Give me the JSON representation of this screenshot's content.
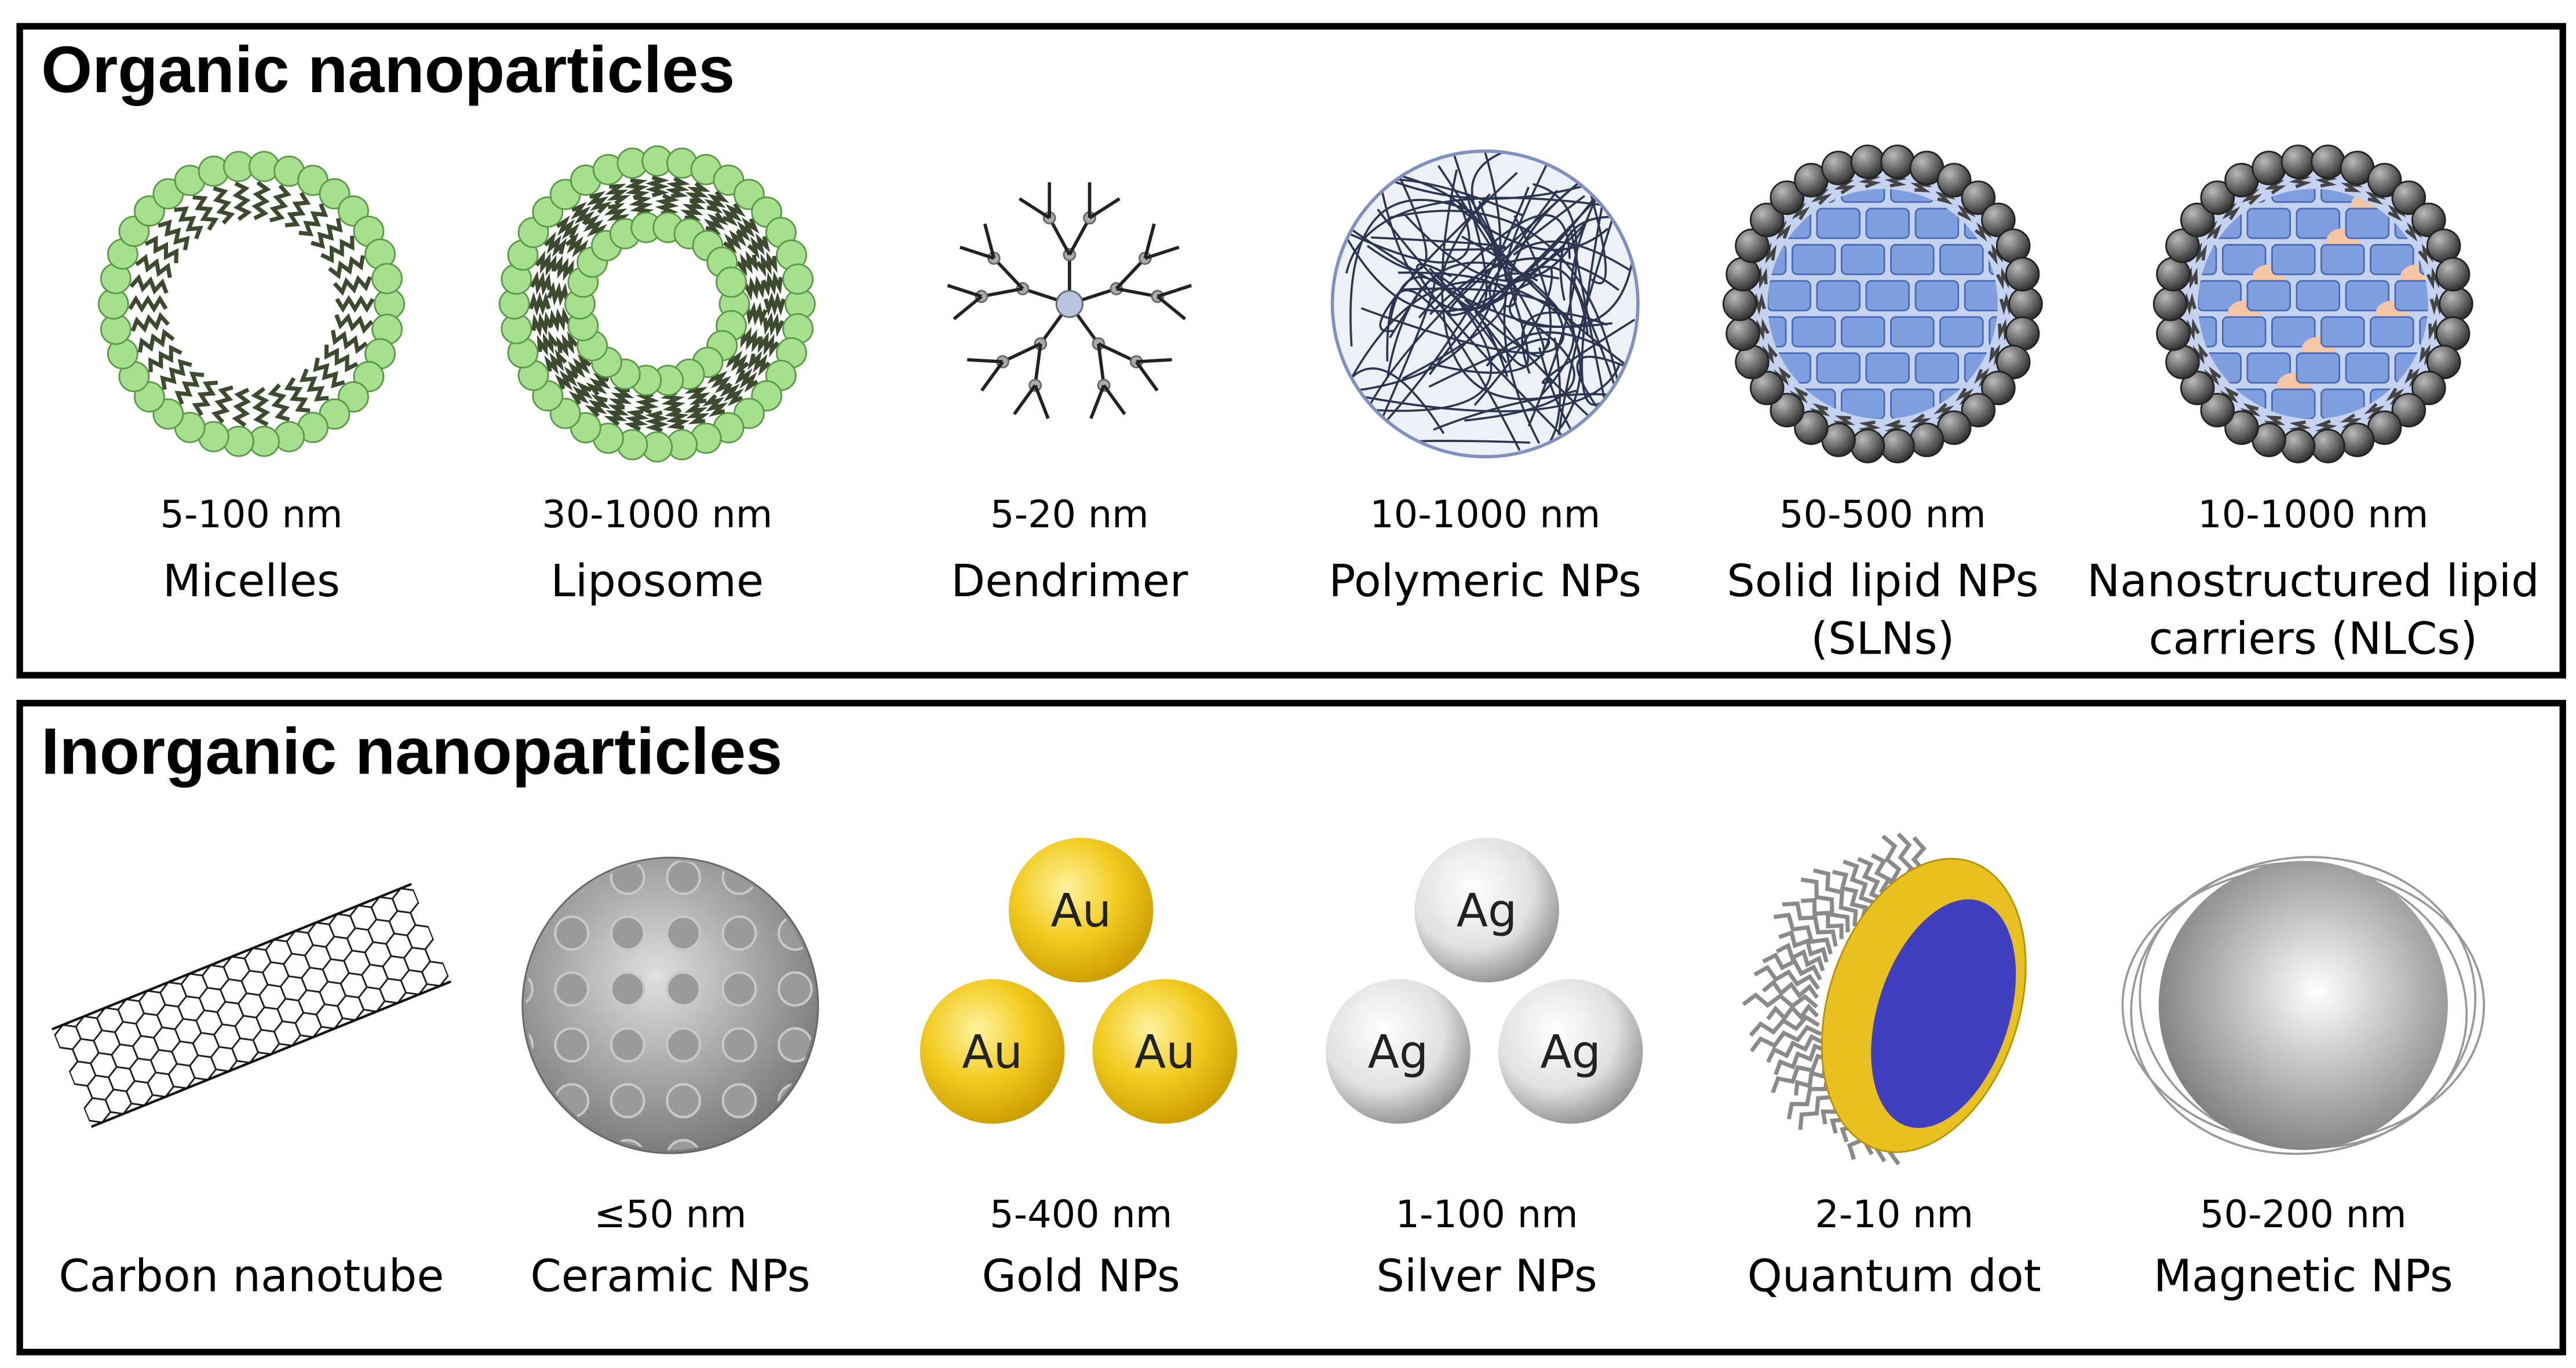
{
  "sections": [
    {
      "title": "Organic nanoparticles",
      "items": [
        {
          "size": "5-100 nm",
          "name": [
            "Micelles"
          ]
        },
        {
          "size": "30-1000 nm",
          "name": [
            "Liposome"
          ]
        },
        {
          "size": "5-20 nm",
          "name": [
            "Dendrimer"
          ]
        },
        {
          "size": "10-1000 nm",
          "name": [
            "Polymeric NPs"
          ]
        },
        {
          "size": "50-500 nm",
          "name": [
            "Solid lipid NPs",
            "(SLNs)"
          ]
        },
        {
          "size": "10-1000 nm",
          "name": [
            "Nanostructured lipid",
            "carriers (NLCs)"
          ]
        }
      ]
    },
    {
      "title": "Inorganic nanoparticles",
      "items": [
        {
          "name": [
            "Carbon nanotube"
          ]
        },
        {
          "size": "≤50 nm",
          "name": [
            "Ceramic NPs"
          ]
        },
        {
          "size": "5-400 nm",
          "name": [
            "Gold NPs"
          ],
          "labels": [
            "Au",
            "Au",
            "Au"
          ]
        },
        {
          "size": "1-100 nm",
          "name": [
            "Silver NPs"
          ],
          "labels": [
            "Ag",
            "Ag",
            "Ag"
          ]
        },
        {
          "size": "2-10 nm",
          "name": [
            "Quantum dot"
          ]
        },
        {
          "size": "50-200 nm",
          "name": [
            "Magnetic NPs"
          ]
        }
      ]
    }
  ]
}
